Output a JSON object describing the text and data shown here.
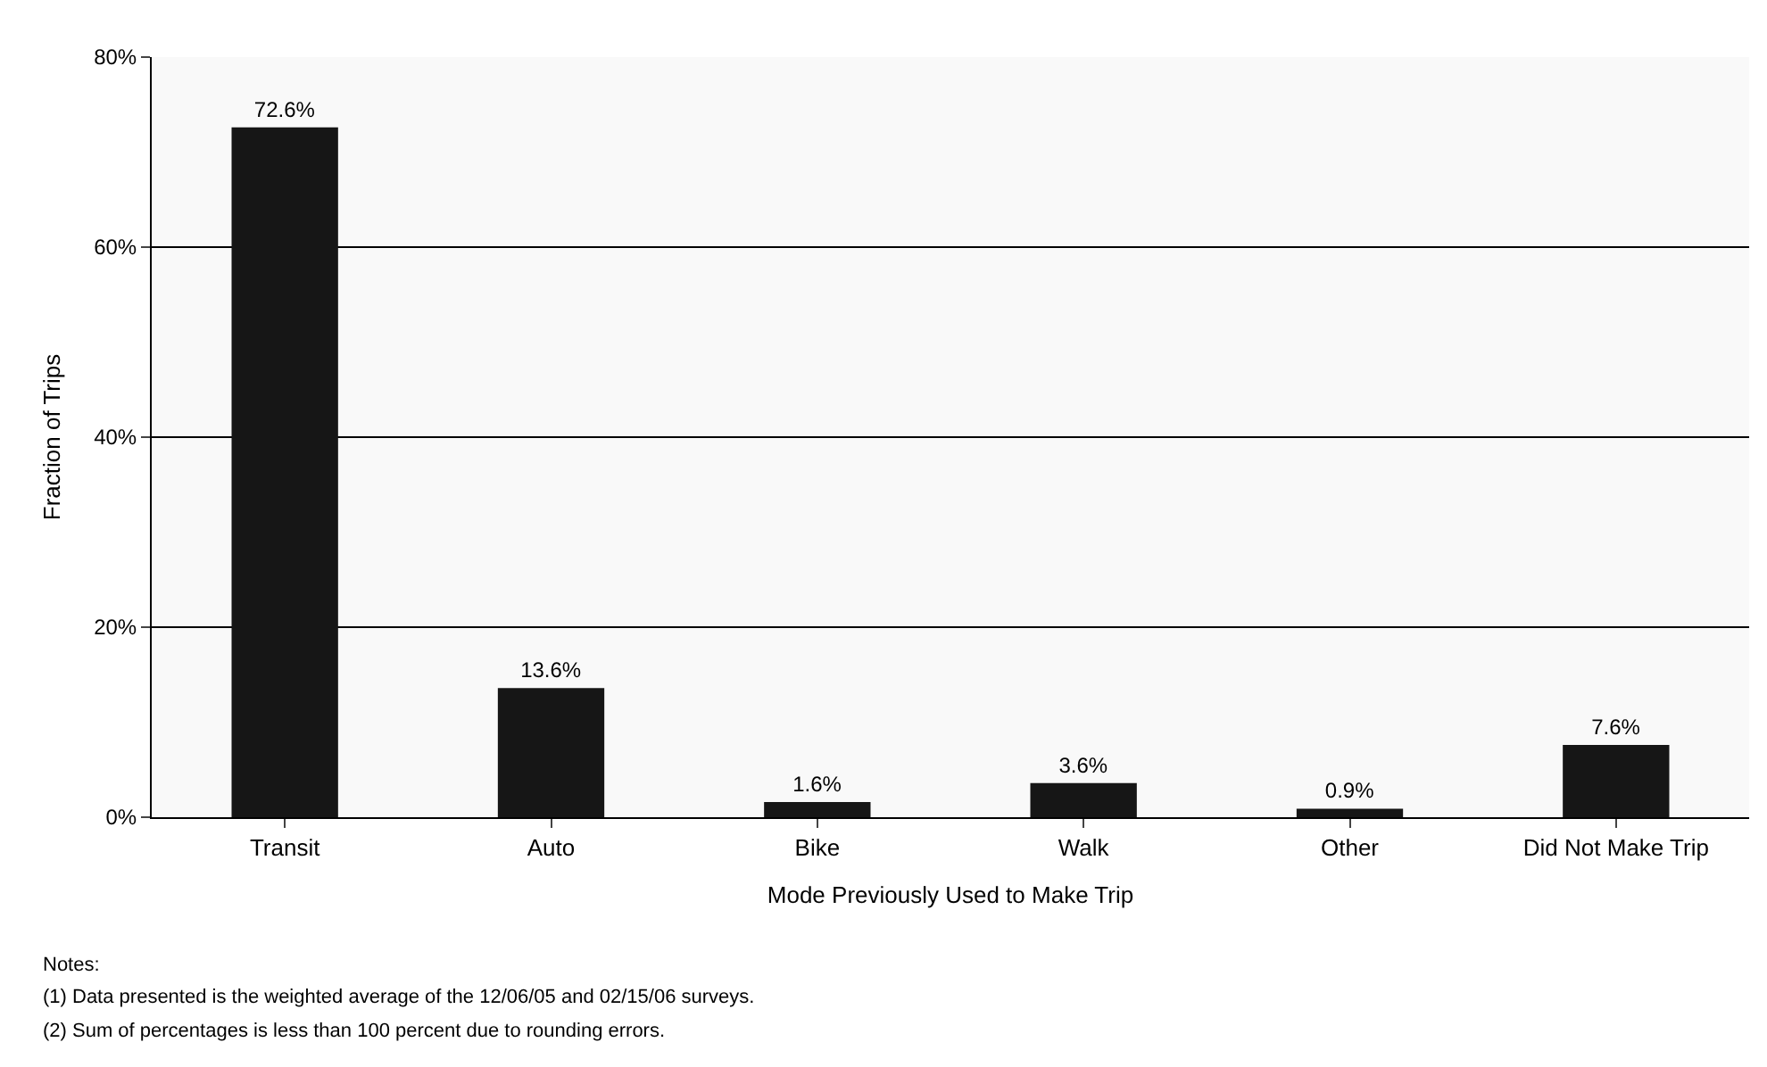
{
  "chart_data": {
    "type": "bar",
    "xlabel": "Mode Previously Used to Make Trip",
    "ylabel": "Fraction of Trips",
    "categories": [
      "Transit",
      "Auto",
      "Bike",
      "Walk",
      "Other",
      "Did Not Make Trip"
    ],
    "values": [
      72.6,
      13.6,
      1.6,
      3.6,
      0.9,
      7.6
    ],
    "value_labels": [
      "72.6%",
      "13.6%",
      "1.6%",
      "3.6%",
      "0.9%",
      "7.6%"
    ],
    "color": "#161616",
    "ylim": [
      0,
      80
    ],
    "yticks": [
      {
        "value": 0,
        "label": "0%"
      },
      {
        "value": 20,
        "label": "20%"
      },
      {
        "value": 40,
        "label": "40%"
      },
      {
        "value": 60,
        "label": "60%"
      },
      {
        "value": 80,
        "label": "80%"
      }
    ],
    "grid": "y",
    "annotations": [
      "Notes:",
      "(1) Data presented is the weighted average of the 12/06/05 and 02/15/06 surveys.",
      "(2) Sum of percentages is less than 100 percent due to rounding errors."
    ]
  }
}
